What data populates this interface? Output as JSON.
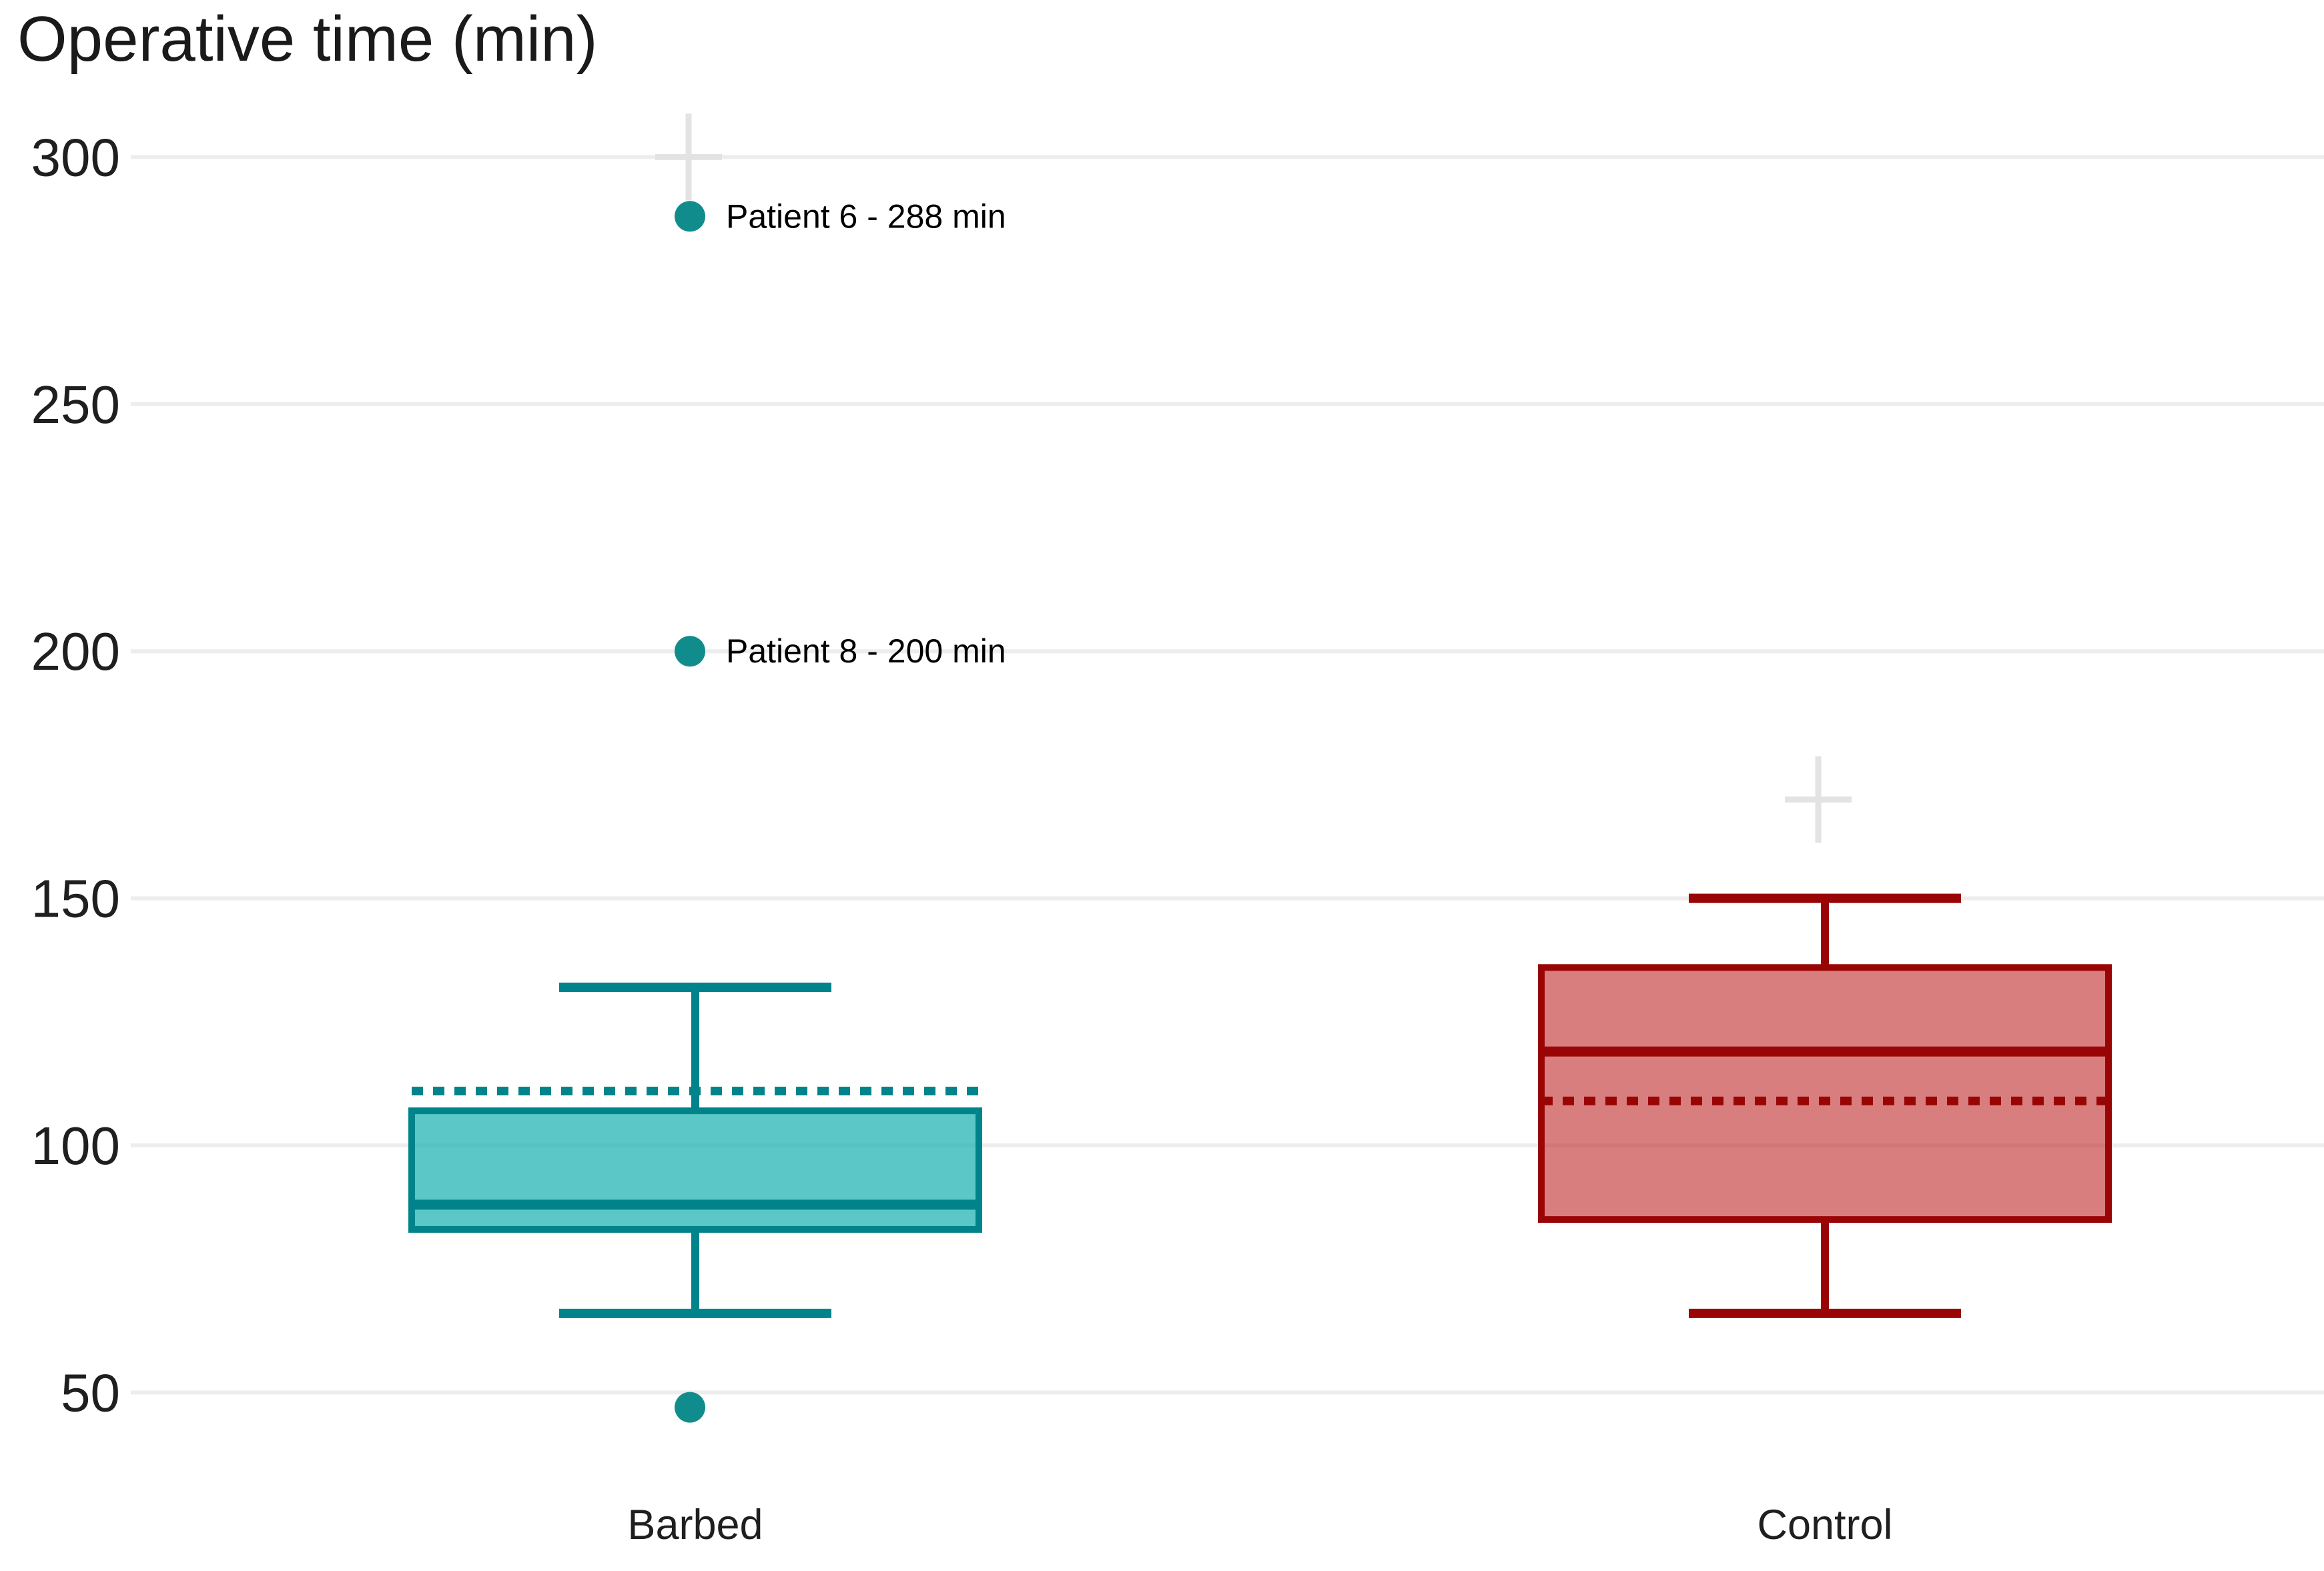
{
  "chart_data": {
    "type": "boxplot",
    "title": "Operative time (min)",
    "y_axis": {
      "unit": "min",
      "ticks": [
        300,
        250,
        200,
        150,
        100,
        50
      ],
      "range": [
        40,
        310
      ],
      "gridlines": true
    },
    "categories": [
      "Barbed",
      "Control"
    ],
    "series": [
      {
        "name": "Barbed",
        "stroke": "#00838a",
        "fill": "rgba(28,178,178,0.72)",
        "marker_color": "#108c8c",
        "whisker_low": 66,
        "q1": 83,
        "median": 88,
        "q3": 107,
        "whisker_high": 132,
        "mean_dashed": 111,
        "outliers": [
          {
            "value": 288,
            "label": "Patient 6 - 288 min"
          },
          {
            "value": 200,
            "label": "Patient 8 - 200 min"
          },
          {
            "value": 47,
            "label": ""
          }
        ],
        "faint_plus_value": 300
      },
      {
        "name": "Control",
        "stroke": "#990505",
        "fill": "rgba(190,40,40,0.6)",
        "marker_color": "#990505",
        "whisker_low": 66,
        "q1": 85,
        "median": 119,
        "q3": 136,
        "whisker_high": 150,
        "mean_dashed": 109,
        "outliers": [],
        "faint_plus_value": 170
      }
    ],
    "legend_position": "none"
  },
  "colors": {
    "background": "#ffffff",
    "grid": "#ededed",
    "text": "#1f1f1f",
    "outlier_label_text": "#000000",
    "faint_marker": "#e3e3e3"
  }
}
